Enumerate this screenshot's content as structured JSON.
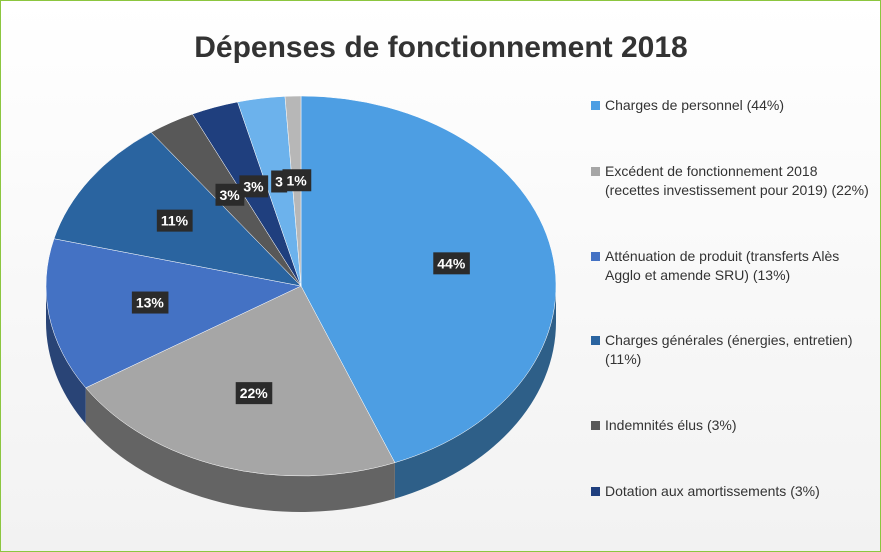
{
  "chart_data": {
    "type": "pie3d",
    "title": "Dépenses de fonctionnement 2018",
    "categories": [
      "Charges de personnel (44%)",
      "Excédent de fonctionnement 2018 (recettes investissement pour 2019) (22%)",
      "Atténuation de produit (transferts Alès Agglo et amende SRU) (13%)",
      "Charges générales (énergies, entretien) (11%)",
      "Indemnités élus (3%)",
      "Dotation aux amortissements (3%)",
      null,
      null
    ],
    "values": [
      44,
      22,
      13,
      11,
      3,
      3,
      3,
      1
    ],
    "value_labels": [
      "44%",
      "22%",
      "13%",
      "11%",
      "3%",
      "3%",
      "3",
      "1%"
    ],
    "colors": [
      "#4d9ee3",
      "#a6a6a6",
      "#4472c4",
      "#2a64a0",
      "#585858",
      "#1f3f7e",
      "#6cb2ec",
      "#b7b7b7"
    ],
    "legend": "right"
  }
}
